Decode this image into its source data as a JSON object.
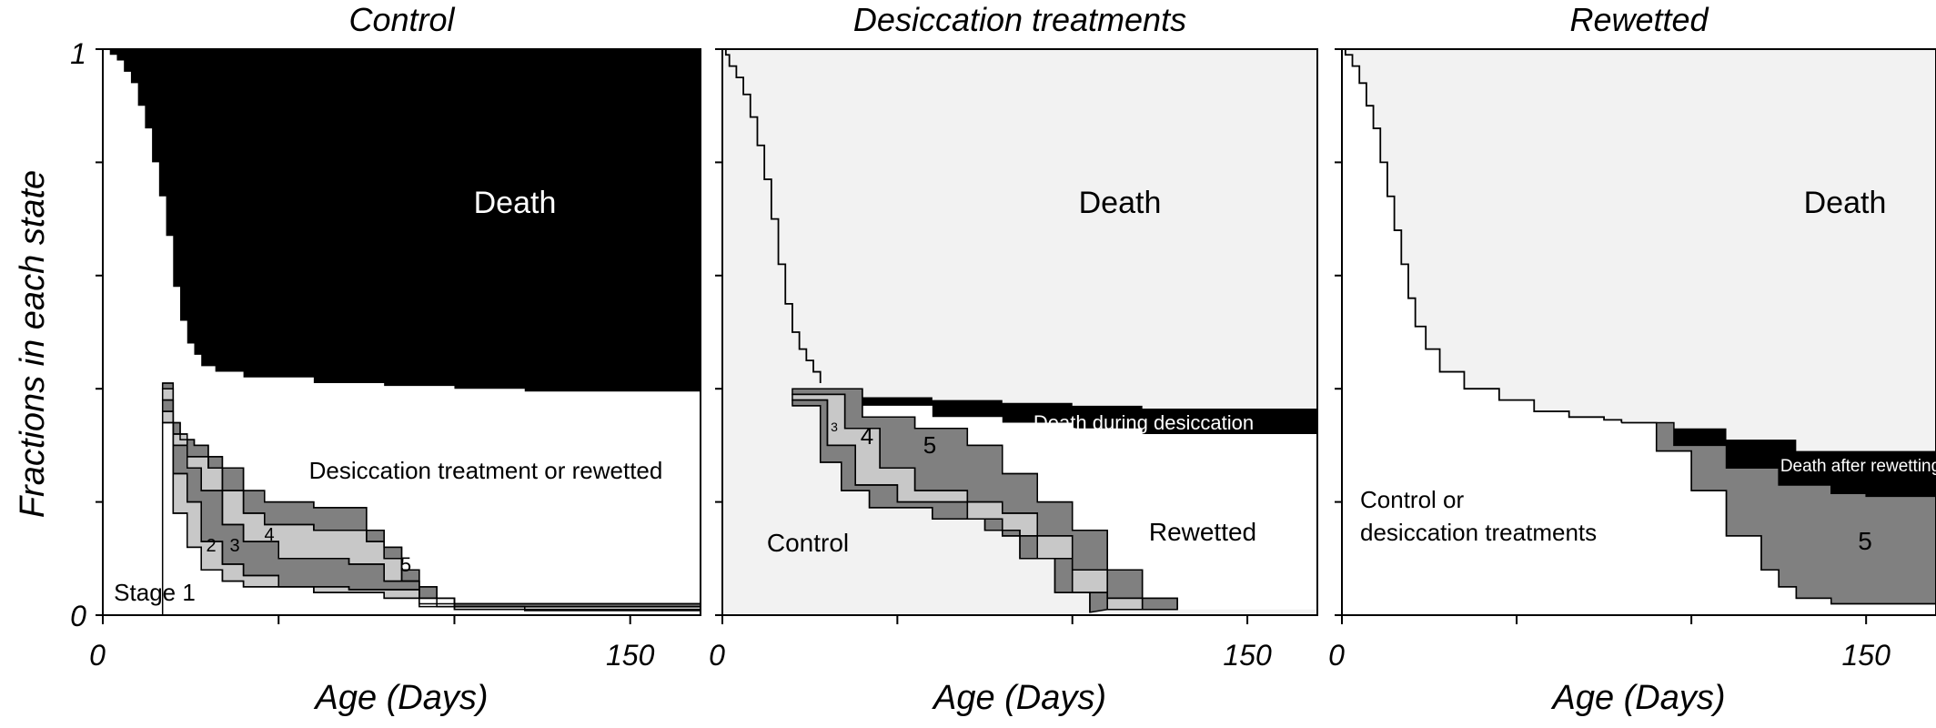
{
  "chart_data": {
    "type": "area",
    "description_units": {
      "x": "days",
      "y": "fraction"
    },
    "ylabel": "Fractions in each state",
    "ylim": [
      0,
      1
    ],
    "y_tick_labels": [
      "0",
      "1"
    ],
    "xlim": [
      0,
      170
    ],
    "x_tick_labels": [
      "0",
      "150"
    ],
    "colors": {
      "death": "#000000",
      "desiccation": "#f2f2f2",
      "stage_light": "#c8c8c8",
      "stage_dark": "#808080",
      "white": "#ffffff"
    },
    "panels": [
      {
        "id": "control",
        "title": "Control",
        "xlabel": "Age (Days)",
        "labels": {
          "death": "Death",
          "desiccation": "Desiccation treatment or rewetted",
          "stage1": "Stage 1",
          "stage2": "2",
          "stage3": "3",
          "stage4": "4",
          "stage5": "5"
        },
        "boundaries": [
          {
            "name": "death",
            "fill": "#000000",
            "top": [
              [
                0,
                1
              ],
              [
                1,
                1
              ],
              [
                2,
                0.99
              ],
              [
                4,
                0.98
              ],
              [
                6,
                0.96
              ],
              [
                8,
                0.94
              ],
              [
                10,
                0.9
              ],
              [
                12,
                0.86
              ],
              [
                14,
                0.8
              ],
              [
                16,
                0.74
              ],
              [
                18,
                0.67
              ],
              [
                20,
                0.58
              ],
              [
                22,
                0.52
              ],
              [
                24,
                0.48
              ],
              [
                26,
                0.46
              ],
              [
                28,
                0.44
              ],
              [
                32,
                0.43
              ],
              [
                40,
                0.42
              ],
              [
                60,
                0.41
              ],
              [
                80,
                0.405
              ],
              [
                100,
                0.4
              ],
              [
                120,
                0.395
              ],
              [
                170,
                0.39
              ]
            ]
          },
          {
            "name": "desiccation",
            "fill": "#ffffff",
            "top": [
              [
                0,
                0.39
              ],
              [
                170,
                0.39
              ]
            ]
          }
        ],
        "stage_curves": [
          {
            "name": "stage5_top",
            "points": [
              [
                17,
                0.41
              ],
              [
                20,
                0.34
              ],
              [
                22,
                0.31
              ],
              [
                26,
                0.3
              ],
              [
                30,
                0.28
              ],
              [
                34,
                0.26
              ],
              [
                40,
                0.22
              ],
              [
                46,
                0.2
              ],
              [
                60,
                0.19
              ],
              [
                75,
                0.15
              ],
              [
                80,
                0.12
              ],
              [
                85,
                0.08
              ],
              [
                90,
                0.05
              ],
              [
                95,
                0.03
              ],
              [
                100,
                0.015
              ],
              [
                120,
                0.01
              ],
              [
                170,
                0.005
              ]
            ]
          },
          {
            "name": "stage4_top",
            "points": [
              [
                17,
                0.4
              ],
              [
                20,
                0.32
              ],
              [
                24,
                0.28
              ],
              [
                30,
                0.26
              ],
              [
                34,
                0.22
              ],
              [
                40,
                0.18
              ],
              [
                46,
                0.16
              ],
              [
                60,
                0.15
              ],
              [
                75,
                0.13
              ],
              [
                80,
                0.1
              ],
              [
                85,
                0.06
              ],
              [
                90,
                0.03
              ],
              [
                95,
                0.015
              ],
              [
                120,
                0.008
              ],
              [
                170,
                0.004
              ]
            ]
          },
          {
            "name": "stage3_top",
            "points": [
              [
                17,
                0.38
              ],
              [
                20,
                0.3
              ],
              [
                24,
                0.26
              ],
              [
                28,
                0.22
              ],
              [
                34,
                0.16
              ],
              [
                40,
                0.13
              ],
              [
                50,
                0.1
              ],
              [
                70,
                0.09
              ],
              [
                80,
                0.06
              ],
              [
                90,
                0.02
              ],
              [
                170,
                0.003
              ]
            ]
          },
          {
            "name": "stage2_top",
            "points": [
              [
                17,
                0.36
              ],
              [
                20,
                0.25
              ],
              [
                24,
                0.2
              ],
              [
                28,
                0.13
              ],
              [
                34,
                0.09
              ],
              [
                40,
                0.07
              ],
              [
                50,
                0.05
              ],
              [
                70,
                0.045
              ],
              [
                90,
                0.015
              ],
              [
                170,
                0.002
              ]
            ]
          },
          {
            "name": "stage1_top",
            "points": [
              [
                17,
                0.34
              ],
              [
                20,
                0.18
              ],
              [
                24,
                0.12
              ],
              [
                28,
                0.08
              ],
              [
                34,
                0.06
              ],
              [
                40,
                0.05
              ],
              [
                60,
                0.04
              ],
              [
                80,
                0.03
              ],
              [
                100,
                0.01
              ],
              [
                170,
                0.001
              ]
            ]
          }
        ],
        "stage_fills": [
          "#808080",
          "#c8c8c8",
          "#808080",
          "#c8c8c8",
          "#ffffff"
        ]
      },
      {
        "id": "desiccation",
        "title": "Desiccation treatments",
        "xlabel": "Age (Days)",
        "labels": {
          "death": "Death",
          "death_during": "Death during desiccation",
          "control": "Control",
          "rewetted": "Rewetted",
          "stage3": "3",
          "stage4": "4",
          "stage5": "5"
        },
        "boundaries": [
          {
            "name": "control_curve",
            "points": [
              [
                0,
                1
              ],
              [
                1,
                0.99
              ],
              [
                2,
                0.97
              ],
              [
                4,
                0.95
              ],
              [
                6,
                0.92
              ],
              [
                8,
                0.88
              ],
              [
                10,
                0.83
              ],
              [
                12,
                0.77
              ],
              [
                14,
                0.7
              ],
              [
                16,
                0.62
              ],
              [
                18,
                0.55
              ],
              [
                20,
                0.5
              ],
              [
                22,
                0.47
              ],
              [
                24,
                0.45
              ],
              [
                26,
                0.43
              ],
              [
                28,
                0.41
              ]
            ]
          },
          {
            "name": "death_band_top",
            "points": [
              [
                20,
                0.4
              ],
              [
                40,
                0.385
              ],
              [
                60,
                0.38
              ],
              [
                80,
                0.375
              ],
              [
                100,
                0.37
              ],
              [
                120,
                0.365
              ],
              [
                170,
                0.36
              ]
            ]
          },
          {
            "name": "death_band_bottom",
            "points": [
              [
                20,
                0.4
              ],
              [
                40,
                0.37
              ],
              [
                60,
                0.35
              ],
              [
                80,
                0.34
              ],
              [
                100,
                0.33
              ],
              [
                120,
                0.32
              ],
              [
                170,
                0.29
              ]
            ]
          },
          {
            "name": "stage5_top",
            "points": [
              [
                20,
                0.4
              ],
              [
                40,
                0.35
              ],
              [
                55,
                0.33
              ],
              [
                70,
                0.3
              ],
              [
                80,
                0.25
              ],
              [
                90,
                0.2
              ],
              [
                100,
                0.15
              ],
              [
                110,
                0.08
              ],
              [
                120,
                0.03
              ],
              [
                130,
                0.01
              ]
            ]
          },
          {
            "name": "stage4_top",
            "points": [
              [
                20,
                0.39
              ],
              [
                35,
                0.33
              ],
              [
                45,
                0.26
              ],
              [
                55,
                0.22
              ],
              [
                70,
                0.2
              ],
              [
                80,
                0.18
              ],
              [
                90,
                0.14
              ],
              [
                100,
                0.08
              ],
              [
                110,
                0.03
              ],
              [
                120,
                0.01
              ]
            ]
          },
          {
            "name": "stage3_top",
            "points": [
              [
                20,
                0.38
              ],
              [
                30,
                0.3
              ],
              [
                38,
                0.23
              ],
              [
                50,
                0.2
              ],
              [
                70,
                0.17
              ],
              [
                80,
                0.14
              ],
              [
                90,
                0.1
              ],
              [
                100,
                0.04
              ],
              [
                110,
                0.01
              ]
            ]
          },
          {
            "name": "control_bottom",
            "points": [
              [
                20,
                0.37
              ],
              [
                28,
                0.27
              ],
              [
                34,
                0.22
              ],
              [
                42,
                0.19
              ],
              [
                60,
                0.17
              ],
              [
                75,
                0.15
              ],
              [
                85,
                0.1
              ],
              [
                95,
                0.04
              ],
              [
                105,
                0.005
              ]
            ]
          }
        ]
      },
      {
        "id": "rewetted",
        "title": "Rewetted",
        "xlabel": "Age (Days)",
        "labels": {
          "death": "Death",
          "death_after": "Death after rewetting",
          "control_or": "Control or",
          "desiccation_treatments": "desiccation treatments",
          "stage5": "5"
        },
        "boundaries": [
          {
            "name": "rewet_curve",
            "points": [
              [
                0,
                1
              ],
              [
                1,
                0.99
              ],
              [
                3,
                0.97
              ],
              [
                5,
                0.94
              ],
              [
                7,
                0.9
              ],
              [
                9,
                0.86
              ],
              [
                11,
                0.8
              ],
              [
                13,
                0.74
              ],
              [
                15,
                0.68
              ],
              [
                17,
                0.62
              ],
              [
                19,
                0.56
              ],
              [
                21,
                0.51
              ],
              [
                24,
                0.47
              ],
              [
                28,
                0.43
              ],
              [
                35,
                0.4
              ],
              [
                45,
                0.38
              ],
              [
                55,
                0.36
              ],
              [
                65,
                0.35
              ],
              [
                75,
                0.345
              ],
              [
                80,
                0.34
              ]
            ]
          },
          {
            "name": "death_top",
            "points": [
              [
                80,
                0.34
              ],
              [
                95,
                0.33
              ],
              [
                110,
                0.31
              ],
              [
                130,
                0.29
              ],
              [
                150,
                0.29
              ],
              [
                170,
                0.29
              ]
            ]
          },
          {
            "name": "death_bottom",
            "points": [
              [
                80,
                0.34
              ],
              [
                95,
                0.3
              ],
              [
                110,
                0.26
              ],
              [
                125,
                0.23
              ],
              [
                140,
                0.215
              ],
              [
                150,
                0.21
              ],
              [
                170,
                0.21
              ]
            ]
          },
          {
            "name": "stage5_bottom",
            "points": [
              [
                80,
                0.34
              ],
              [
                90,
                0.29
              ],
              [
                100,
                0.22
              ],
              [
                110,
                0.14
              ],
              [
                120,
                0.08
              ],
              [
                125,
                0.05
              ],
              [
                130,
                0.03
              ],
              [
                140,
                0.02
              ],
              [
                170,
                0.02
              ]
            ]
          }
        ]
      }
    ]
  }
}
